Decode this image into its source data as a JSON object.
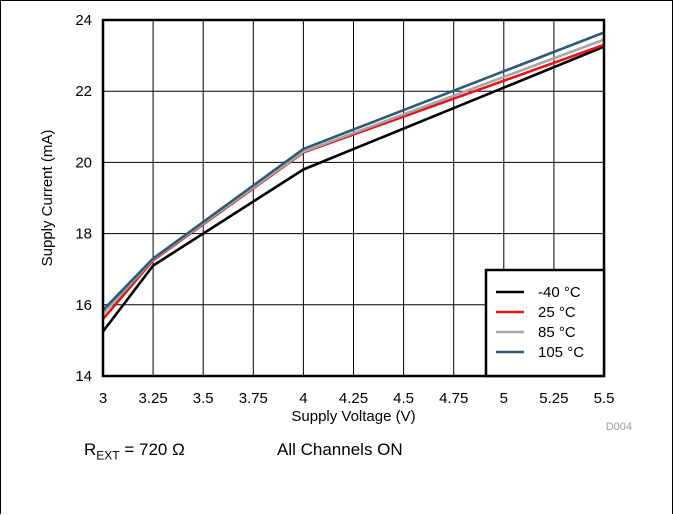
{
  "chart_data": {
    "type": "line",
    "xlabel": "Supply Voltage (V)",
    "ylabel": "Supply Current (mA)",
    "xlim": [
      3,
      5.5
    ],
    "ylim": [
      14,
      24
    ],
    "x_ticks": [
      3,
      3.25,
      3.5,
      3.75,
      4,
      4.25,
      4.5,
      4.75,
      5,
      5.25,
      5.5
    ],
    "x_tick_labels": [
      "3",
      "3.25",
      "3.5",
      "3.75",
      "4",
      "4.25",
      "4.5",
      "4.75",
      "5",
      "5.25",
      "5.5"
    ],
    "y_ticks": [
      14,
      16,
      18,
      20,
      22,
      24
    ],
    "y_tick_labels": [
      "14",
      "16",
      "18",
      "20",
      "22",
      "24"
    ],
    "grid": true,
    "legend_position": "bottom-right",
    "figure_id": "D004",
    "series": [
      {
        "name": "-40 °C",
        "color": "#000000",
        "x": [
          3,
          3.25,
          4,
          5.5
        ],
        "y": [
          15.25,
          17.1,
          19.8,
          23.25
        ]
      },
      {
        "name": "25 °C",
        "color": "#e8131a",
        "x": [
          3,
          3.25,
          4,
          5.5
        ],
        "y": [
          15.6,
          17.25,
          20.28,
          23.3
        ]
      },
      {
        "name": "85 °C",
        "color": "#a7a7a7",
        "x": [
          3,
          3.25,
          4,
          5.5
        ],
        "y": [
          15.75,
          17.28,
          20.3,
          23.45
        ]
      },
      {
        "name": "105 °C",
        "color": "#2e5a73",
        "x": [
          3,
          3.25,
          4,
          5.5
        ],
        "y": [
          15.85,
          17.3,
          20.38,
          23.65
        ]
      }
    ]
  },
  "notes": {
    "rext_main": "R",
    "rext_sub": "EXT",
    "rext_value": " = 720 Ω",
    "channels": "All Channels ON"
  }
}
